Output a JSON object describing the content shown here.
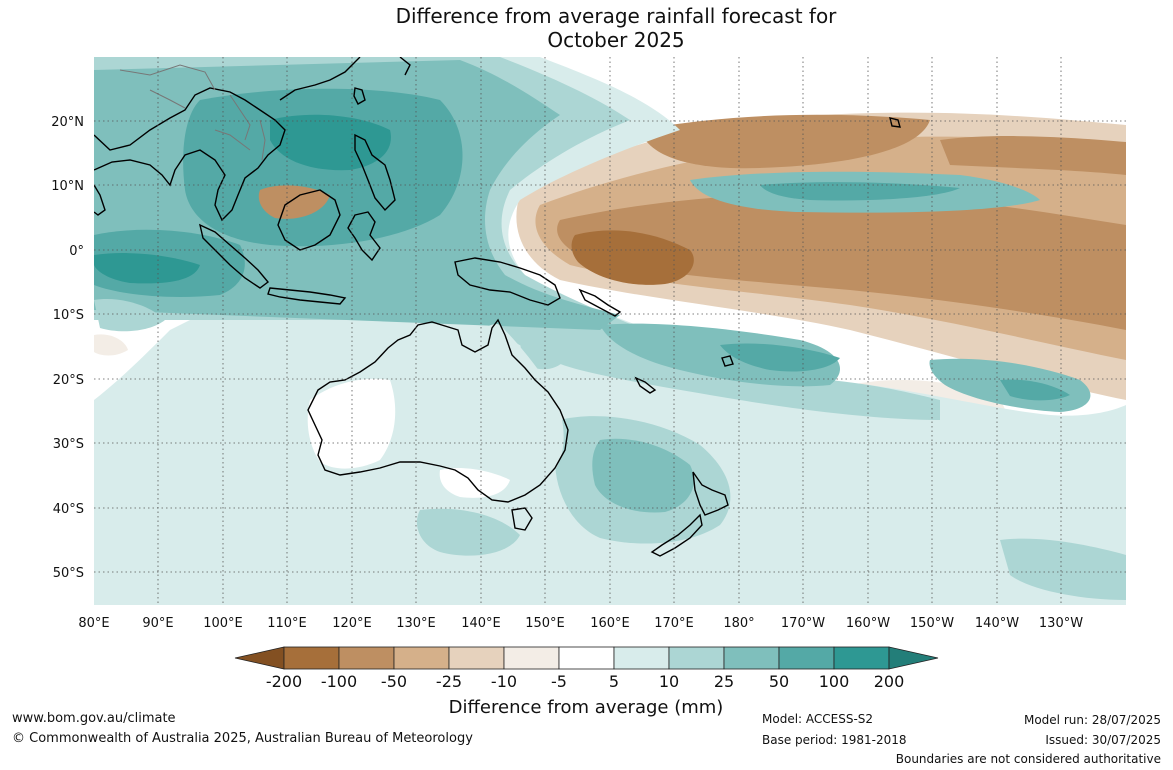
{
  "title_line1": "Difference from average rainfall forecast for",
  "title_line2": "October 2025",
  "lon_labels": [
    "80°E",
    "90°E",
    "100°E",
    "110°E",
    "120°E",
    "130°E",
    "140°E",
    "150°E",
    "160°E",
    "170°E",
    "180°",
    "170°W",
    "160°W",
    "150°W",
    "140°W",
    "130°W"
  ],
  "lat_labels": [
    "20°N",
    "10°N",
    "0°",
    "10°S",
    "20°S",
    "30°S",
    "40°S",
    "50°S"
  ],
  "colorbar": {
    "labels": [
      "-200",
      "-100",
      "-50",
      "-25",
      "-10",
      "-5",
      "5",
      "10",
      "25",
      "50",
      "100",
      "200"
    ],
    "colors": [
      "#a66f3a",
      "#be8f62",
      "#d5b08a",
      "#e6d2bd",
      "#f3ede6",
      "#ffffff",
      "#d8eceb",
      "#acd6d4",
      "#7fbfbc",
      "#54a9a6",
      "#2e9893",
      "#237e79"
    ],
    "title": "Difference from average (mm)"
  },
  "footer": {
    "website": "www.bom.gov.au/climate",
    "copyright": "© Commonwealth of Australia 2025, Australian Bureau of Meteorology",
    "model": "Model: ACCESS-S2",
    "base_period": "Base period: 1981-2018",
    "model_run": "Model run: 28/07/2025",
    "issued": "Issued: 30/07/2025",
    "disclaimer": "Boundaries are not considered authoritative"
  }
}
